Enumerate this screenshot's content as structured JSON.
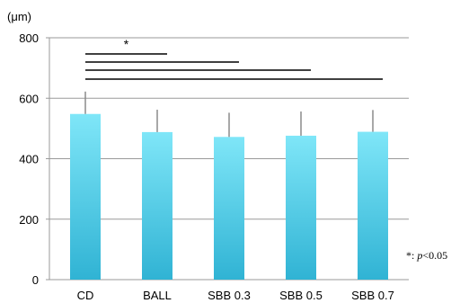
{
  "chart_data": {
    "type": "bar",
    "unit_label": "(μm)",
    "categories": [
      "CD",
      "BALL",
      "SBB 0.3",
      "SBB 0.5",
      "SBB 0.7"
    ],
    "values": [
      548,
      488,
      472,
      476,
      489
    ],
    "error_upper": [
      622,
      562,
      552,
      556,
      561
    ],
    "ylim": [
      0,
      800
    ],
    "yticks": [
      "0",
      "200",
      "400",
      "600",
      "800"
    ],
    "grid": true,
    "bar_gradient": [
      "#7fe6f8",
      "#30b3d4"
    ],
    "significance": {
      "symbol": "*",
      "brackets": [
        {
          "from": "CD",
          "to": "BALL"
        },
        {
          "from": "CD",
          "to": "SBB 0.3"
        },
        {
          "from": "CD",
          "to": "SBB 0.5"
        },
        {
          "from": "CD",
          "to": "SBB 0.7"
        }
      ]
    },
    "footnote": {
      "symbol": "*",
      "text_prefix": ": ",
      "p_symbol": "p",
      "text_suffix": "<0.05"
    }
  }
}
